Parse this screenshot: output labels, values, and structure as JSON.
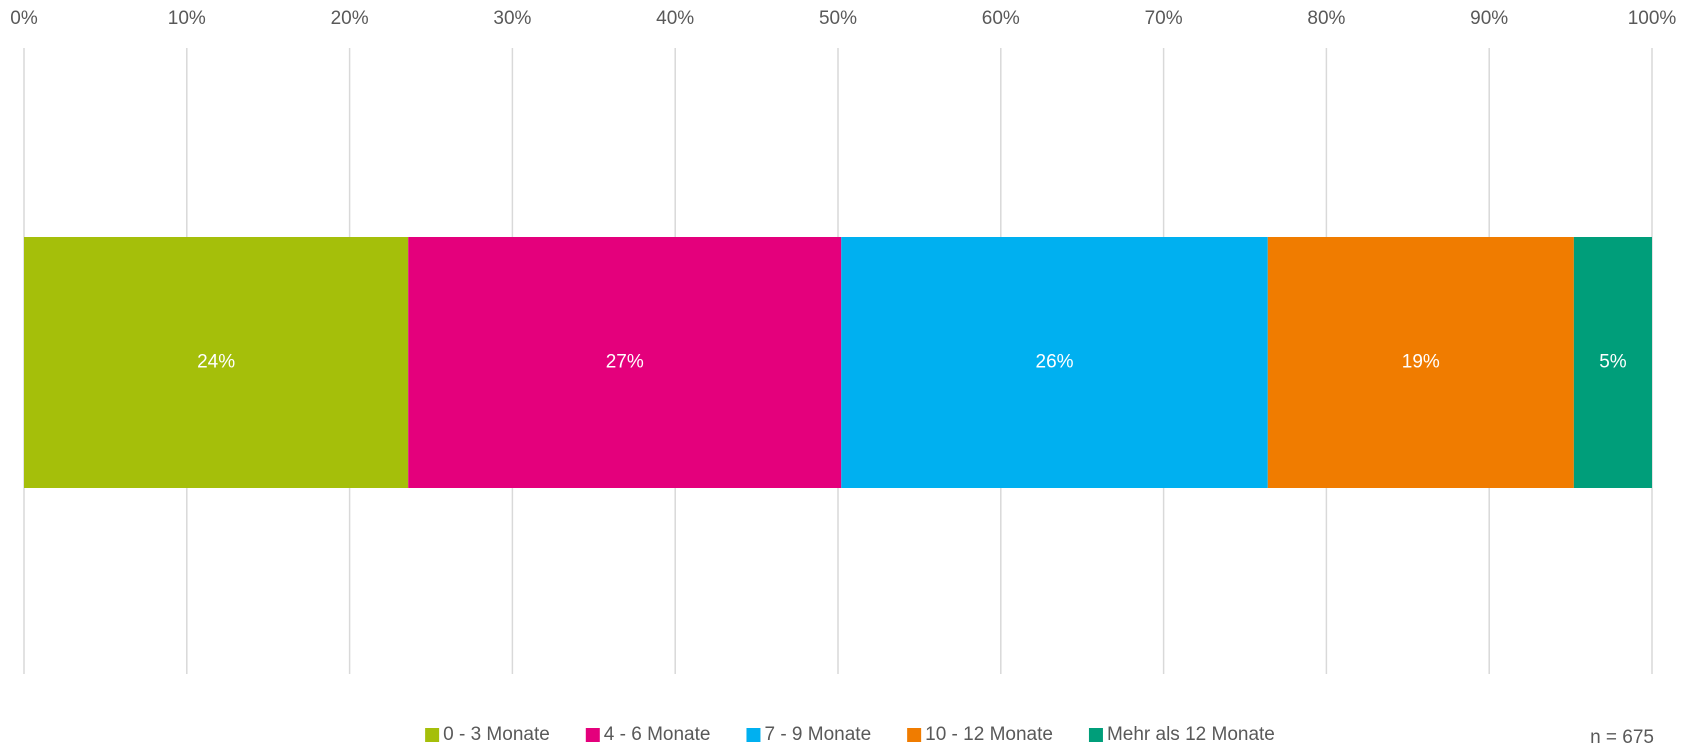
{
  "chart_data": {
    "type": "stacked_bar_horizontal",
    "categories": [
      null
    ],
    "series": [
      {
        "name": "0 - 3 Monate",
        "color": "#a5bf0a",
        "values": [
          23.6
        ],
        "value_labels": [
          "24%"
        ]
      },
      {
        "name": "4 - 6 Monate",
        "color": "#e4007c",
        "values": [
          26.6
        ],
        "value_labels": [
          "27%"
        ]
      },
      {
        "name": "7 - 9 Monate",
        "color": "#00b0f0",
        "values": [
          26.2
        ],
        "value_labels": [
          "26%"
        ]
      },
      {
        "name": "10 - 12 Monate",
        "color": "#f07c00",
        "values": [
          18.8
        ],
        "value_labels": [
          "19%"
        ]
      },
      {
        "name": "Mehr als 12 Monate",
        "color": "#009e7a",
        "values": [
          4.8
        ],
        "value_labels": [
          "5%"
        ]
      }
    ],
    "xlim": [
      0,
      100
    ],
    "xticks": [
      {
        "value": 0,
        "label": "0%"
      },
      {
        "value": 10,
        "label": "10%"
      },
      {
        "value": 20,
        "label": "20%"
      },
      {
        "value": 30,
        "label": "30%"
      },
      {
        "value": 40,
        "label": "40%"
      },
      {
        "value": 50,
        "label": "50%"
      },
      {
        "value": 60,
        "label": "60%"
      },
      {
        "value": 70,
        "label": "70%"
      },
      {
        "value": 80,
        "label": "80%"
      },
      {
        "value": 90,
        "label": "90%"
      },
      {
        "value": 100,
        "label": "100%"
      }
    ],
    "grid": true,
    "legend": "bottom",
    "annotation": "n = 675"
  }
}
